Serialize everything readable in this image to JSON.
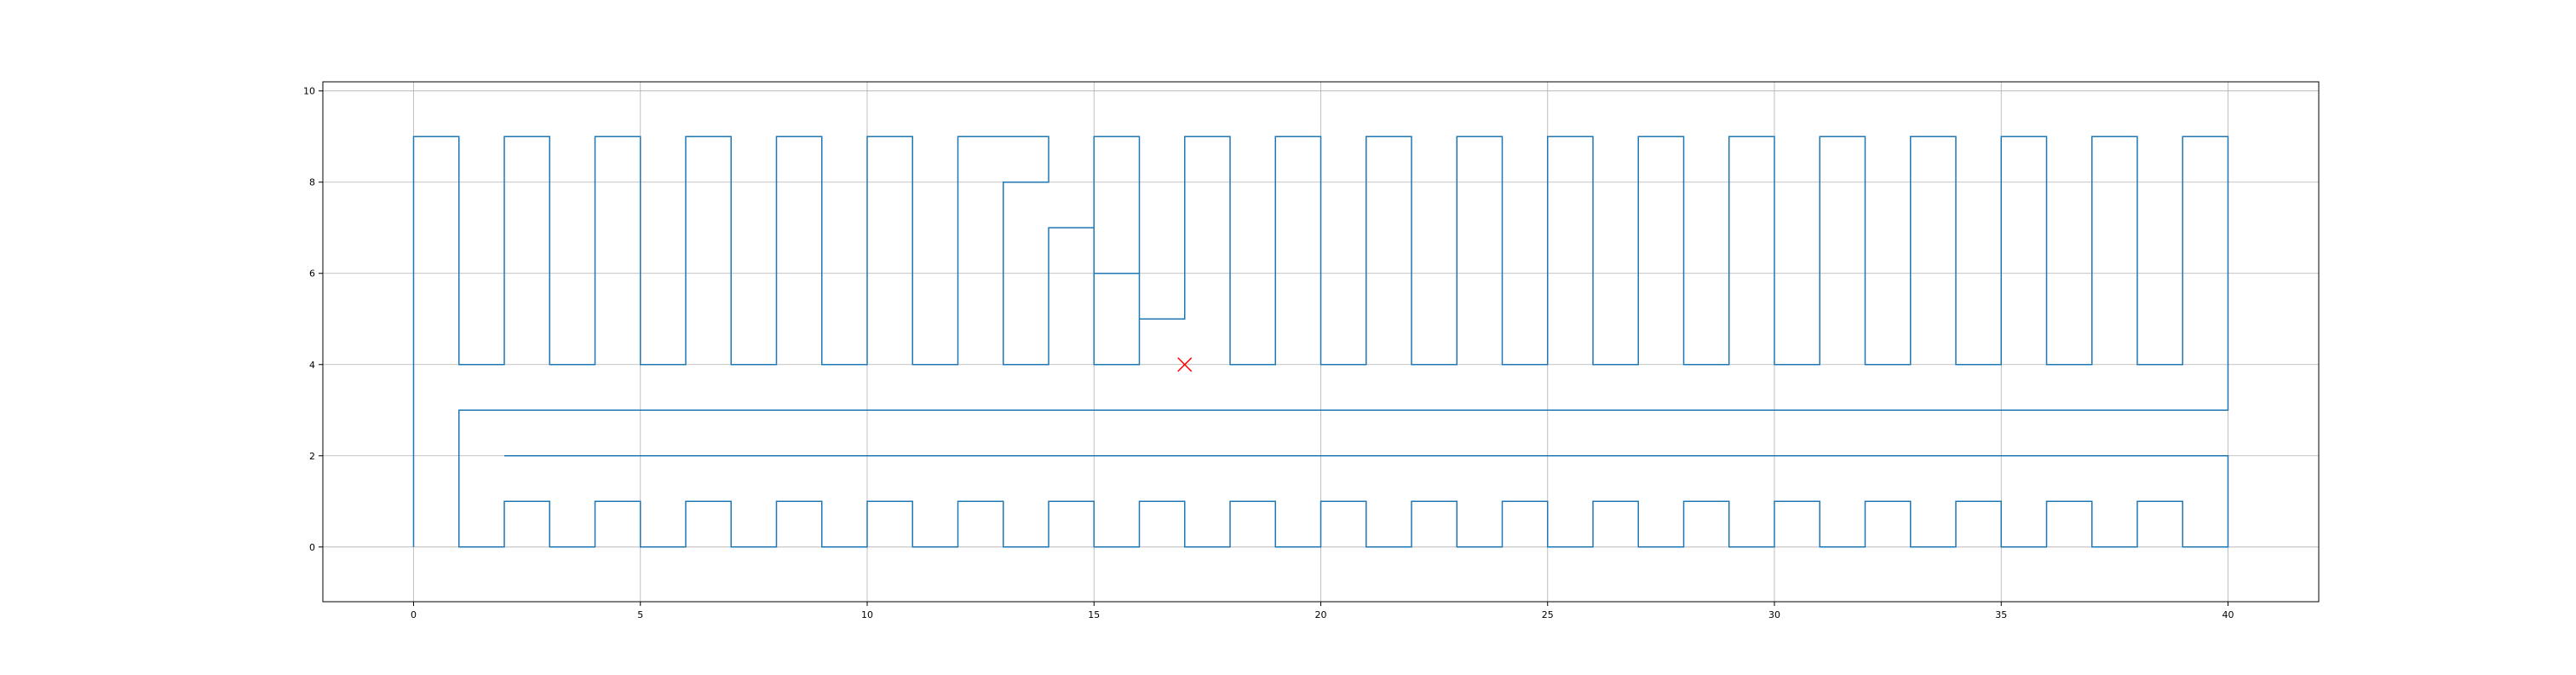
{
  "chart_data": {
    "type": "line",
    "title": "",
    "xlabel": "",
    "ylabel": "",
    "xlim": [
      -2,
      42
    ],
    "ylim": [
      -1.2,
      10.2
    ],
    "grid": true,
    "x_ticks": [
      0,
      5,
      10,
      15,
      20,
      25,
      30,
      35,
      40
    ],
    "y_ticks": [
      0,
      2,
      4,
      6,
      8,
      10
    ],
    "colors": {
      "line": "#1f77b4",
      "marker": "#ff0000",
      "grid": "#b0b0b0",
      "axes": "#000000"
    },
    "series": [
      {
        "points": [
          [
            0,
            0
          ],
          [
            0,
            9
          ],
          [
            1,
            9
          ],
          [
            1,
            4
          ],
          [
            2,
            4
          ],
          [
            2,
            9
          ],
          [
            3,
            9
          ],
          [
            3,
            4
          ],
          [
            4,
            4
          ],
          [
            4,
            9
          ],
          [
            5,
            9
          ],
          [
            5,
            4
          ],
          [
            6,
            4
          ],
          [
            6,
            9
          ],
          [
            7,
            9
          ],
          [
            7,
            4
          ],
          [
            8,
            4
          ],
          [
            8,
            9
          ],
          [
            9,
            9
          ],
          [
            9,
            4
          ],
          [
            10,
            4
          ],
          [
            10,
            9
          ],
          [
            11,
            9
          ],
          [
            11,
            4
          ],
          [
            12,
            4
          ],
          [
            12,
            9
          ],
          [
            14,
            9
          ],
          [
            14,
            8
          ],
          [
            13,
            8
          ],
          [
            13,
            4
          ],
          [
            14,
            4
          ],
          [
            14,
            7
          ],
          [
            15,
            7
          ],
          [
            15,
            6
          ],
          [
            15,
            4
          ],
          [
            16,
            4
          ],
          [
            16,
            6
          ],
          [
            15,
            6
          ],
          [
            15,
            9
          ],
          [
            16,
            9
          ],
          [
            16,
            5
          ],
          [
            17,
            5
          ],
          [
            17,
            9
          ],
          [
            18,
            9
          ],
          [
            18,
            4
          ],
          [
            19,
            4
          ],
          [
            19,
            9
          ],
          [
            20,
            9
          ],
          [
            20,
            4
          ],
          [
            21,
            4
          ],
          [
            21,
            9
          ],
          [
            22,
            9
          ],
          [
            22,
            4
          ],
          [
            23,
            4
          ],
          [
            23,
            9
          ],
          [
            24,
            9
          ],
          [
            24,
            4
          ],
          [
            25,
            4
          ],
          [
            25,
            9
          ],
          [
            26,
            9
          ],
          [
            26,
            4
          ],
          [
            27,
            4
          ],
          [
            27,
            9
          ],
          [
            28,
            9
          ],
          [
            28,
            4
          ],
          [
            29,
            4
          ],
          [
            29,
            9
          ],
          [
            30,
            9
          ],
          [
            30,
            4
          ],
          [
            31,
            4
          ],
          [
            31,
            9
          ],
          [
            32,
            9
          ],
          [
            32,
            4
          ],
          [
            33,
            4
          ],
          [
            33,
            9
          ],
          [
            34,
            9
          ],
          [
            34,
            4
          ],
          [
            35,
            4
          ],
          [
            35,
            9
          ],
          [
            36,
            9
          ],
          [
            36,
            4
          ],
          [
            37,
            4
          ],
          [
            37,
            9
          ],
          [
            38,
            9
          ],
          [
            38,
            4
          ],
          [
            39,
            4
          ],
          [
            39,
            9
          ],
          [
            40,
            9
          ],
          [
            40,
            3
          ],
          [
            1,
            3
          ],
          [
            1,
            0
          ],
          [
            2,
            0
          ],
          [
            2,
            1
          ],
          [
            3,
            1
          ],
          [
            3,
            0
          ],
          [
            4,
            0
          ],
          [
            4,
            1
          ],
          [
            5,
            1
          ],
          [
            5,
            0
          ],
          [
            6,
            0
          ],
          [
            6,
            1
          ],
          [
            7,
            1
          ],
          [
            7,
            0
          ],
          [
            8,
            0
          ],
          [
            8,
            1
          ],
          [
            9,
            1
          ],
          [
            9,
            0
          ],
          [
            10,
            0
          ],
          [
            10,
            1
          ],
          [
            11,
            1
          ],
          [
            11,
            0
          ],
          [
            12,
            0
          ],
          [
            12,
            1
          ],
          [
            13,
            1
          ],
          [
            13,
            0
          ],
          [
            14,
            0
          ],
          [
            14,
            1
          ],
          [
            15,
            1
          ],
          [
            15,
            0
          ],
          [
            16,
            0
          ],
          [
            16,
            1
          ],
          [
            17,
            1
          ],
          [
            17,
            0
          ],
          [
            18,
            0
          ],
          [
            18,
            1
          ],
          [
            19,
            1
          ],
          [
            19,
            0
          ],
          [
            20,
            0
          ],
          [
            20,
            1
          ],
          [
            21,
            1
          ],
          [
            21,
            0
          ],
          [
            22,
            0
          ],
          [
            22,
            1
          ],
          [
            23,
            1
          ],
          [
            23,
            0
          ],
          [
            24,
            0
          ],
          [
            24,
            1
          ],
          [
            25,
            1
          ],
          [
            25,
            0
          ],
          [
            26,
            0
          ],
          [
            26,
            1
          ],
          [
            27,
            1
          ],
          [
            27,
            0
          ],
          [
            28,
            0
          ],
          [
            28,
            1
          ],
          [
            29,
            1
          ],
          [
            29,
            0
          ],
          [
            30,
            0
          ],
          [
            30,
            1
          ],
          [
            31,
            1
          ],
          [
            31,
            0
          ],
          [
            32,
            0
          ],
          [
            32,
            1
          ],
          [
            33,
            1
          ],
          [
            33,
            0
          ],
          [
            34,
            0
          ],
          [
            34,
            1
          ],
          [
            35,
            1
          ],
          [
            35,
            0
          ],
          [
            36,
            0
          ],
          [
            36,
            1
          ],
          [
            37,
            1
          ],
          [
            37,
            0
          ],
          [
            38,
            0
          ],
          [
            38,
            1
          ],
          [
            39,
            1
          ],
          [
            39,
            0
          ],
          [
            40,
            0
          ],
          [
            40,
            2
          ],
          [
            2,
            2
          ]
        ]
      }
    ],
    "markers": [
      {
        "x": 17,
        "y": 4,
        "symbol": "x"
      }
    ]
  }
}
